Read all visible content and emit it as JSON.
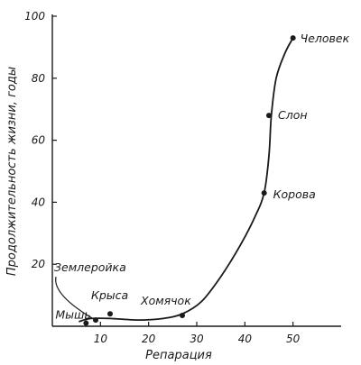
{
  "chart_data": {
    "type": "scatter",
    "title": "",
    "xlabel": "Репарация",
    "ylabel": "Продолжительность жизни, годы",
    "xlim": [
      0,
      60
    ],
    "ylim": [
      0,
      100
    ],
    "x_ticks": [
      10,
      20,
      30,
      40,
      50
    ],
    "y_ticks": [
      20,
      40,
      60,
      80,
      100
    ],
    "grid": false,
    "legend": "none",
    "points": [
      {
        "name": "Мышь",
        "x": 7,
        "y": 1
      },
      {
        "name": "Землеройка",
        "x": 9,
        "y": 2
      },
      {
        "name": "Крыса",
        "x": 12,
        "y": 4
      },
      {
        "name": "Хомячок",
        "x": 27,
        "y": 3.5
      },
      {
        "name": "Корова",
        "x": 44,
        "y": 43
      },
      {
        "name": "Слон",
        "x": 45,
        "y": 68
      },
      {
        "name": "Человек",
        "x": 50,
        "y": 93
      }
    ],
    "curve": [
      [
        5.5,
        1.5
      ],
      [
        8,
        2.5
      ],
      [
        12,
        2.5
      ],
      [
        18,
        2
      ],
      [
        23,
        2.5
      ],
      [
        27,
        4
      ],
      [
        31,
        8
      ],
      [
        35,
        16
      ],
      [
        39,
        26
      ],
      [
        42,
        35
      ],
      [
        44,
        43
      ],
      [
        45,
        55
      ],
      [
        45.5,
        68
      ],
      [
        46.5,
        80
      ],
      [
        48.3,
        88
      ],
      [
        50,
        93
      ]
    ]
  }
}
